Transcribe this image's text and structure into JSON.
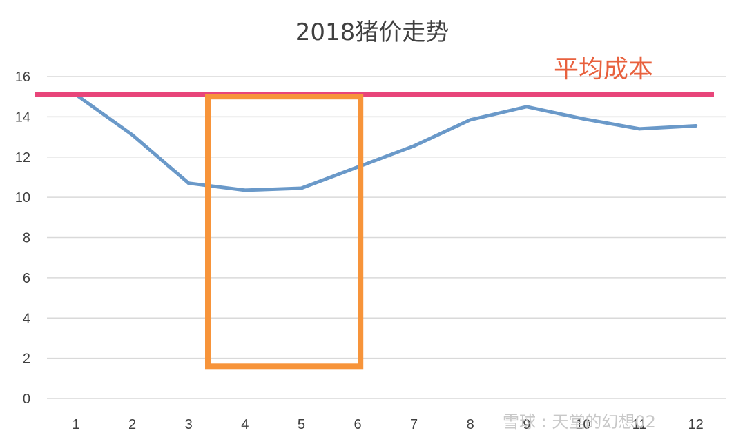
{
  "chart_data": {
    "type": "line",
    "title": "2018猪价走势",
    "xlabel": "",
    "ylabel": "",
    "categories": [
      "1",
      "2",
      "3",
      "4",
      "5",
      "6",
      "7",
      "8",
      "9",
      "10",
      "11",
      "12"
    ],
    "series": [
      {
        "values": [
          15.1,
          13.1,
          10.7,
          10.35,
          10.45,
          11.5,
          12.55,
          13.85,
          14.5,
          13.9,
          13.4,
          13.55
        ],
        "color": "#6a99c9"
      }
    ],
    "ylim": [
      0,
      16
    ],
    "yticks": [
      0,
      2,
      4,
      6,
      8,
      10,
      12,
      14,
      16
    ],
    "grid": true,
    "reference_line": {
      "label": "平均成本",
      "value": 15.1,
      "color": "#e8457a",
      "label_color": "#e8613e"
    },
    "highlight_box": {
      "from_category": "3",
      "to_category": "6",
      "y_range": [
        1.6,
        15.0
      ],
      "color": "#f7943a"
    }
  },
  "watermark": {
    "text": "雪球 : 天堂的幻想02"
  }
}
